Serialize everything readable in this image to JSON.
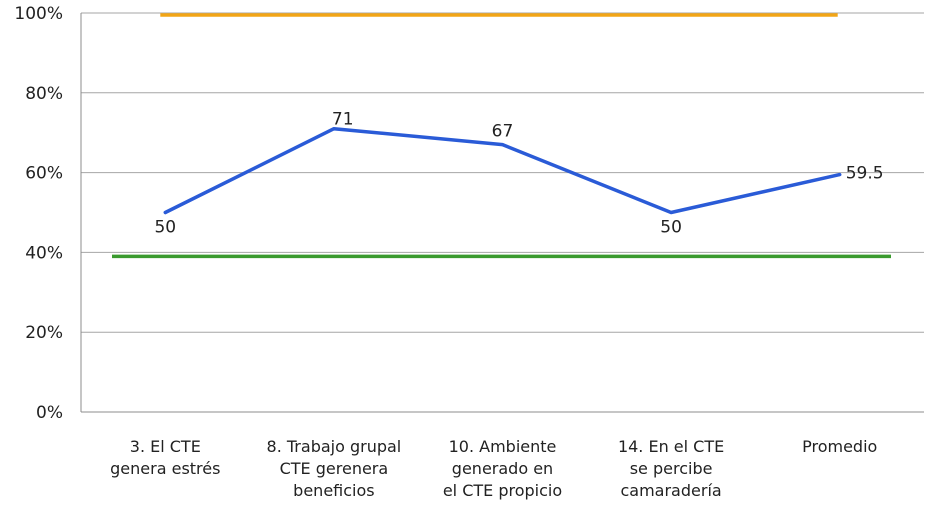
{
  "chart_data": {
    "type": "line",
    "title": "",
    "xlabel": "",
    "ylabel": "",
    "ylim": [
      0,
      100
    ],
    "y_ticks": [
      0,
      20,
      40,
      60,
      80,
      100
    ],
    "y_tick_labels": [
      "0%",
      "20%",
      "40%",
      "60%",
      "80%",
      "100%"
    ],
    "grid": true,
    "categories": [
      [
        "3. El CTE",
        "genera estrés"
      ],
      [
        "8. Trabajo grupal",
        "CTE gerenera",
        "beneficios"
      ],
      [
        "10. Ambiente",
        "generado en",
        "el CTE propicio"
      ],
      [
        "14. En el CTE",
        "se percibe",
        "camaradería"
      ],
      [
        "Promedio"
      ]
    ],
    "series": [
      {
        "values": [
          50,
          71,
          67,
          50,
          59.5
        ],
        "labels": [
          "50",
          "71",
          "67",
          "50",
          "59.5"
        ],
        "color": "#2a5bd7"
      }
    ],
    "reference_lines": [
      {
        "value": 99.5,
        "color": "#f2a516",
        "span": "categories"
      },
      {
        "value": 39,
        "color": "#3a9a2e",
        "span": "full"
      }
    ]
  },
  "colors": {
    "axis": "#8c8c8c",
    "grid": "#a6a6a6",
    "text": "#222222"
  }
}
